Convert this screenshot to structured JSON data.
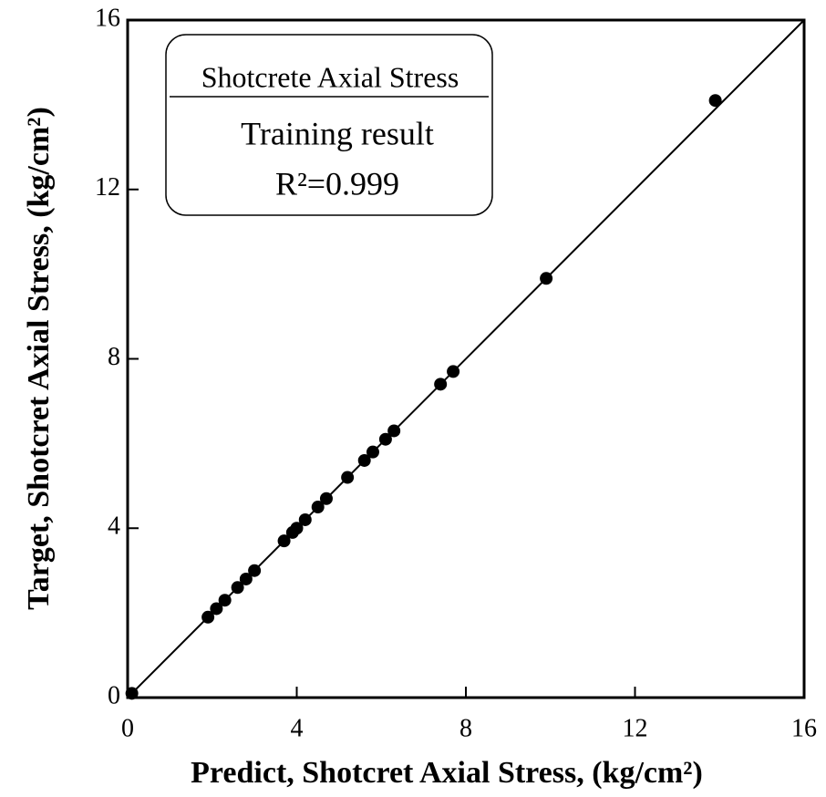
{
  "chart_data": {
    "type": "scatter",
    "xlabel": "Predict, Shotcret Axial Stress, (kg/cm²)",
    "ylabel": "Target, Shotcret Axial Stress, (kg/cm²)",
    "annotations": [
      "Shotcrete Axial Stress",
      "Training result",
      "R²=0.999"
    ],
    "x": [
      0.1,
      1.9,
      2.1,
      2.3,
      2.6,
      2.8,
      3.0,
      3.7,
      3.9,
      4.0,
      4.2,
      4.5,
      4.7,
      5.2,
      5.6,
      5.8,
      6.1,
      6.3,
      7.4,
      7.7,
      9.9,
      13.9
    ],
    "values": [
      0.1,
      1.9,
      2.1,
      2.3,
      2.6,
      2.8,
      3.0,
      3.7,
      3.9,
      4.0,
      4.2,
      4.5,
      4.7,
      5.2,
      5.6,
      5.8,
      6.1,
      6.3,
      7.4,
      7.7,
      9.9,
      14.1
    ],
    "color": "#000000",
    "xlim": [
      0,
      16
    ],
    "ylim": [
      0,
      16
    ],
    "xticks": [
      0,
      4,
      8,
      12,
      16
    ],
    "yticks": [
      0,
      4,
      8,
      12,
      16
    ],
    "grid": false
  }
}
